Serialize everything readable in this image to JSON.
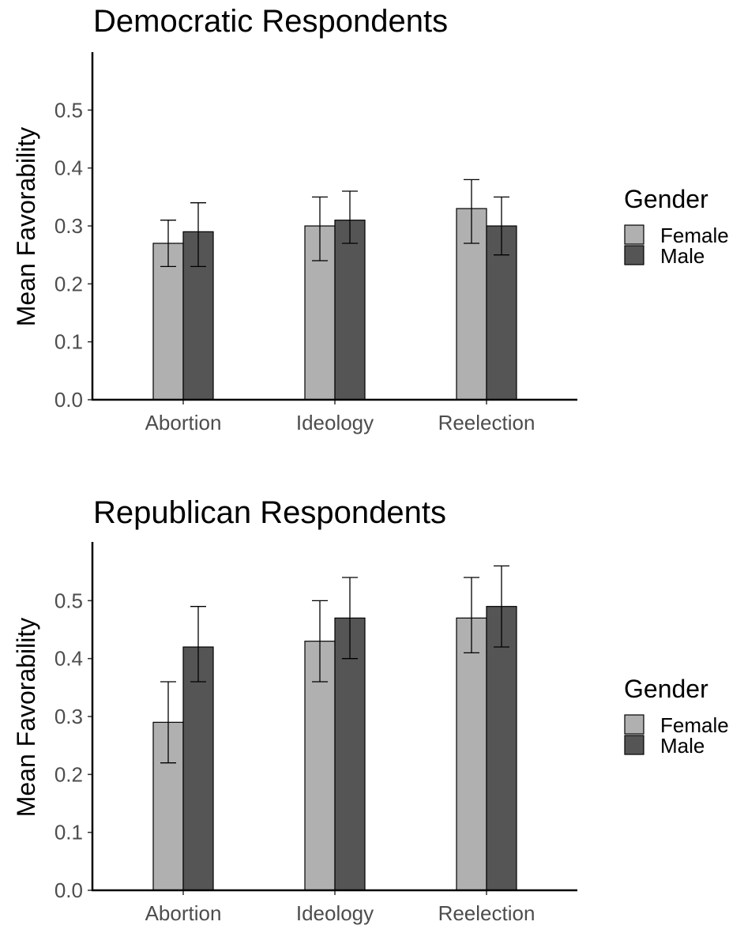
{
  "chart_data": [
    {
      "type": "bar",
      "title": "Democratic Respondents",
      "xlabel": "",
      "ylabel": "Mean Favorability",
      "ylim": [
        0,
        0.6
      ],
      "yticks": [
        "0.0",
        "0.1",
        "0.2",
        "0.3",
        "0.4",
        "0.5"
      ],
      "categories": [
        "Abortion",
        "Ideology",
        "Reelection"
      ],
      "legend_title": "Gender",
      "legend_position": "right",
      "grid": false,
      "series": [
        {
          "name": "Female",
          "color": "#b0b0b0",
          "values": [
            0.27,
            0.3,
            0.33
          ],
          "lower": [
            0.23,
            0.24,
            0.27
          ],
          "upper": [
            0.31,
            0.35,
            0.38
          ]
        },
        {
          "name": "Male",
          "color": "#555555",
          "values": [
            0.29,
            0.31,
            0.3
          ],
          "lower": [
            0.23,
            0.27,
            0.25
          ],
          "upper": [
            0.34,
            0.36,
            0.35
          ]
        }
      ]
    },
    {
      "type": "bar",
      "title": "Republican Respondents",
      "xlabel": "",
      "ylabel": "Mean Favorability",
      "ylim": [
        0,
        0.6
      ],
      "yticks": [
        "0.0",
        "0.1",
        "0.2",
        "0.3",
        "0.4",
        "0.5"
      ],
      "categories": [
        "Abortion",
        "Ideology",
        "Reelection"
      ],
      "legend_title": "Gender",
      "legend_position": "right",
      "grid": false,
      "series": [
        {
          "name": "Female",
          "color": "#b0b0b0",
          "values": [
            0.29,
            0.43,
            0.47
          ],
          "lower": [
            0.22,
            0.36,
            0.41
          ],
          "upper": [
            0.36,
            0.5,
            0.54
          ]
        },
        {
          "name": "Male",
          "color": "#555555",
          "values": [
            0.42,
            0.47,
            0.49
          ],
          "lower": [
            0.36,
            0.4,
            0.42
          ],
          "upper": [
            0.49,
            0.54,
            0.56
          ]
        }
      ]
    }
  ]
}
